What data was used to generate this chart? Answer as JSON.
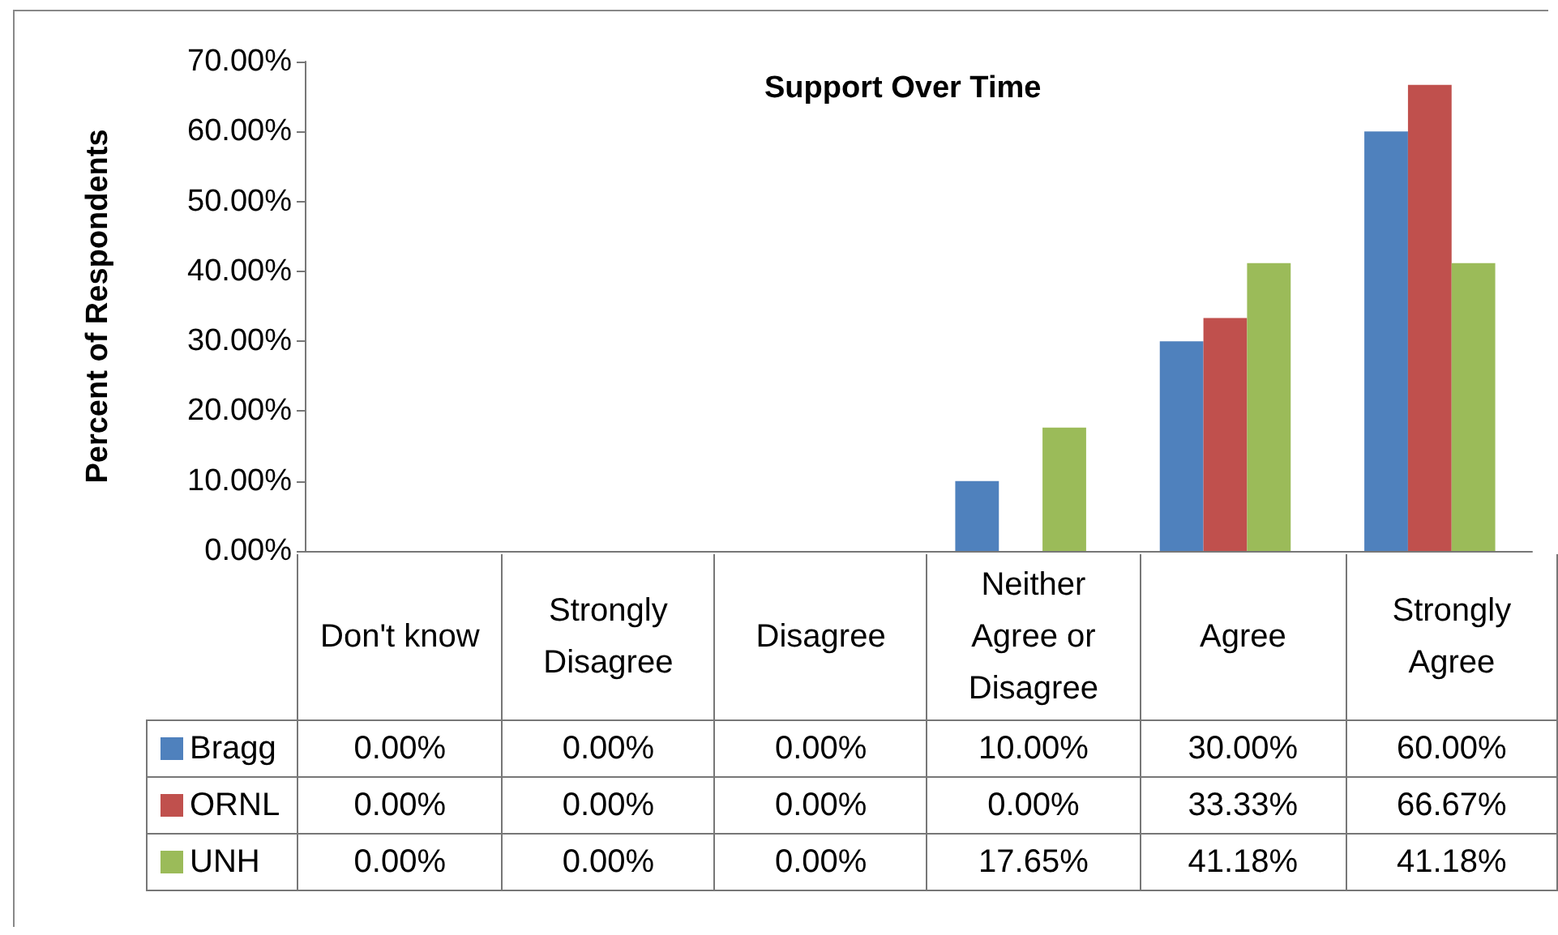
{
  "chart_data": {
    "type": "bar",
    "title": "Support Over Time",
    "ylabel": "Percent of Respondents",
    "categories": [
      "Don't know",
      "Strongly Disagree",
      "Disagree",
      "Neither Agree or Disagree",
      "Agree",
      "Strongly Agree"
    ],
    "series": [
      {
        "name": "Bragg",
        "color": "#4f81bd",
        "values": [
          0,
          0,
          0,
          10,
          30,
          60
        ],
        "value_labels": [
          "0.00%",
          "0.00%",
          "0.00%",
          "10.00%",
          "30.00%",
          "60.00%"
        ]
      },
      {
        "name": "ORNL",
        "color": "#c0504d",
        "values": [
          0,
          0,
          0,
          0,
          33.33,
          66.67
        ],
        "value_labels": [
          "0.00%",
          "0.00%",
          "0.00%",
          "0.00%",
          "33.33%",
          "66.67%"
        ]
      },
      {
        "name": "UNH",
        "color": "#9bbb59",
        "values": [
          0,
          0,
          0,
          17.65,
          41.18,
          41.18
        ],
        "value_labels": [
          "0.00%",
          "0.00%",
          "0.00%",
          "17.65%",
          "41.18%",
          "41.18%"
        ]
      }
    ],
    "ylim": [
      0,
      70
    ],
    "yticks": [
      {
        "value": 0,
        "label": "0.00%"
      },
      {
        "value": 10,
        "label": "10.00%"
      },
      {
        "value": 20,
        "label": "20.00%"
      },
      {
        "value": 30,
        "label": "30.00%"
      },
      {
        "value": 40,
        "label": "40.00%"
      },
      {
        "value": 50,
        "label": "50.00%"
      },
      {
        "value": 60,
        "label": "60.00%"
      },
      {
        "value": 70,
        "label": "70.00%"
      }
    ],
    "legend": "bottom left"
  }
}
